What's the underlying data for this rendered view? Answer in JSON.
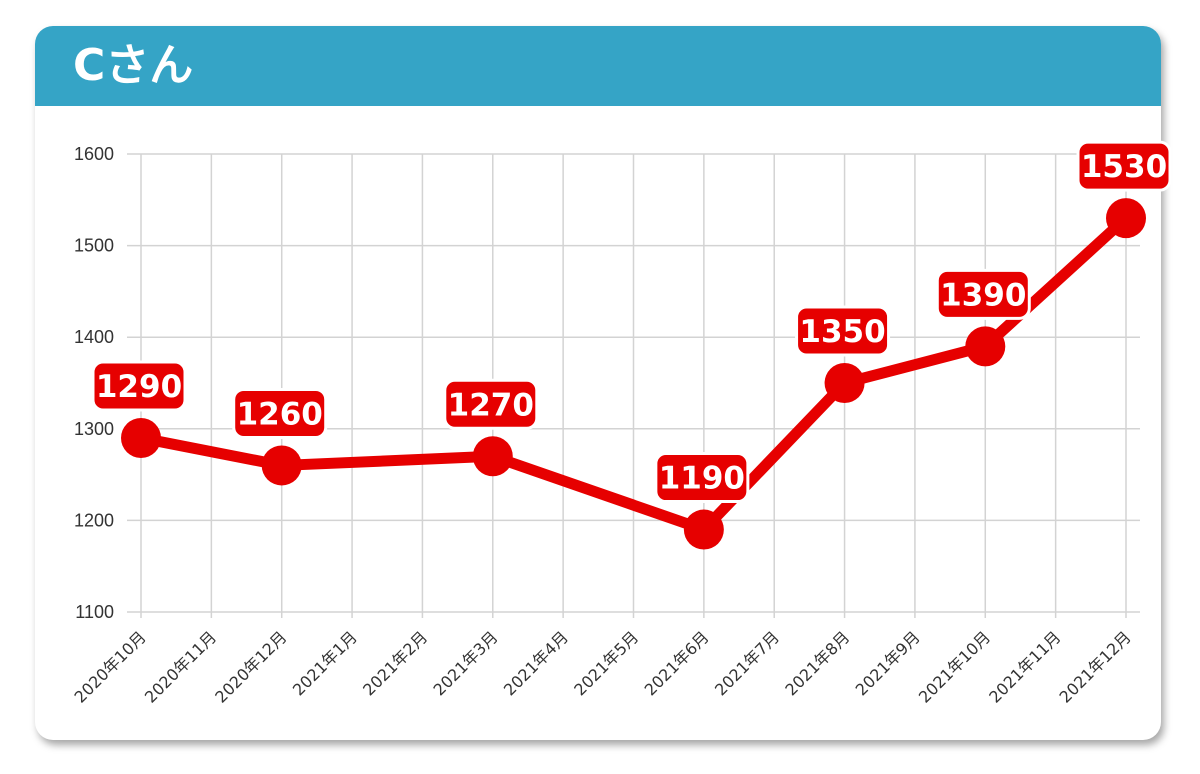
{
  "card": {
    "title": "Cさん",
    "header_color": "#35a4c6"
  },
  "chart_data": {
    "type": "line",
    "title": "Cさん",
    "xlabel": "",
    "ylabel": "",
    "ylim": [
      1100,
      1600
    ],
    "yticks": [
      1100,
      1200,
      1300,
      1400,
      1500,
      1600
    ],
    "categories": [
      "2020年10月",
      "2020年11月",
      "2020年12月",
      "2021年1月",
      "2021年2月",
      "2021年3月",
      "2021年4月",
      "2021年5月",
      "2021年6月",
      "2021年7月",
      "2021年8月",
      "2021年9月",
      "2021年10月",
      "2021年11月",
      "2021年12月"
    ],
    "series": [
      {
        "color": "#e60000",
        "points": [
          {
            "x": "2020年10月",
            "y": 1290
          },
          {
            "x": "2020年12月",
            "y": 1260
          },
          {
            "x": "2021年3月",
            "y": 1270
          },
          {
            "x": "2021年6月",
            "y": 1190
          },
          {
            "x": "2021年8月",
            "y": 1350
          },
          {
            "x": "2021年10月",
            "y": 1390
          },
          {
            "x": "2021年12月",
            "y": 1530
          }
        ]
      }
    ],
    "data_labels": [
      "1290",
      "1260",
      "1270",
      "1190",
      "1350",
      "1390",
      "1530"
    ],
    "grid": true,
    "legend": "none"
  }
}
